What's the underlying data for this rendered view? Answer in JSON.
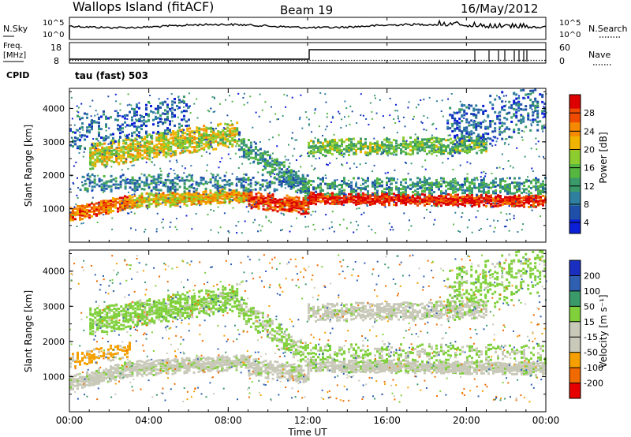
{
  "header": {
    "station": "Wallops Island (fitACF)",
    "beam": "Beam 19",
    "date": "16/May/2012"
  },
  "top_panel": {
    "left_label": "N.Sky",
    "left_ticks": [
      "10^5",
      "10^0"
    ],
    "right_label": "N.Search",
    "right_ticks": [
      "10^5",
      "10^0"
    ]
  },
  "freq_panel": {
    "left_label_1": "Freq.",
    "left_label_2": "[MHz]",
    "left_ticks": [
      "18",
      "8"
    ],
    "right_label": "Nave",
    "right_ticks": [
      "60",
      "0"
    ],
    "cpid_label": "CPID",
    "cpid_value": "tau (fast) 503"
  },
  "colors": {
    "power": [
      "#0b1fd6",
      "#1f4fa8",
      "#2f7fa0",
      "#3a9a6a",
      "#55b640",
      "#8ccc2e",
      "#f0b400",
      "#f58a00",
      "#ee4a00",
      "#dd0000"
    ],
    "velocity": [
      "#e60000",
      "#f06a00",
      "#f5a000",
      "#c9c9b9",
      "#c9c9b9",
      "#7fd03a",
      "#3a9a6a",
      "#2f5fb0",
      "#1a2fc0"
    ]
  },
  "chart_data": [
    {
      "type": "heatmap",
      "name": "power",
      "xlabel": "",
      "ylabel": "Slant Range [km]",
      "xlim": [
        0,
        24
      ],
      "ylim": [
        0,
        4600
      ],
      "yticks": [
        1000,
        2000,
        3000,
        4000
      ],
      "colorbar": {
        "label": "Power [dB]",
        "ticks": [
          "28",
          "24",
          "20",
          "16",
          "12",
          "8",
          "4"
        ],
        "range": [
          0,
          30
        ]
      },
      "bands": [
        {
          "from_h": 0,
          "to_h": 3,
          "range_start": 850,
          "range_end": 1250,
          "width": 180,
          "level": 24,
          "density": 0.95
        },
        {
          "from_h": 3,
          "to_h": 9,
          "range_start": 1250,
          "range_end": 1450,
          "width": 200,
          "level": 20,
          "density": 0.95
        },
        {
          "from_h": 9,
          "to_h": 12,
          "range_start": 1300,
          "range_end": 1100,
          "width": 220,
          "level": 26,
          "density": 0.9
        },
        {
          "from_h": 12,
          "to_h": 24,
          "range_start": 1350,
          "range_end": 1250,
          "width": 160,
          "level": 28,
          "density": 0.95
        },
        {
          "from_h": 1,
          "to_h": 8.5,
          "range_start": 2600,
          "range_end": 3300,
          "width": 350,
          "level": 18,
          "density": 0.75
        },
        {
          "from_h": 8.5,
          "to_h": 12,
          "range_start": 3000,
          "range_end": 1600,
          "width": 300,
          "level": 10,
          "density": 0.55
        },
        {
          "from_h": 12,
          "to_h": 21,
          "range_start": 2850,
          "range_end": 2950,
          "width": 250,
          "level": 14,
          "density": 0.7
        },
        {
          "from_h": 0.5,
          "to_h": 12,
          "range_start": 1800,
          "range_end": 1800,
          "width": 250,
          "level": 8,
          "density": 0.35
        },
        {
          "from_h": 12,
          "to_h": 24,
          "range_start": 1700,
          "range_end": 1700,
          "width": 250,
          "level": 10,
          "density": 0.5
        },
        {
          "from_h": 0,
          "to_h": 6,
          "range_start": 3300,
          "range_end": 3900,
          "width": 500,
          "level": 6,
          "density": 0.25
        },
        {
          "from_h": 19,
          "to_h": 24,
          "range_start": 3300,
          "range_end": 4200,
          "width": 700,
          "level": 6,
          "density": 0.3
        }
      ]
    },
    {
      "type": "heatmap",
      "name": "velocity",
      "xlabel": "Time UT",
      "ylabel": "Slant Range [km]",
      "xlim": [
        0,
        24
      ],
      "ylim": [
        0,
        4600
      ],
      "xticks": [
        "00:00",
        "04:00",
        "08:00",
        "12:00",
        "16:00",
        "20:00",
        "00:00"
      ],
      "yticks": [
        1000,
        2000,
        3000,
        4000
      ],
      "colorbar": {
        "label": "Velocity [m s⁻¹]",
        "ticks": [
          "200",
          "100",
          "50",
          "15",
          "-15",
          "-50",
          "-100",
          "-200"
        ],
        "range": [
          -250,
          250
        ]
      },
      "bands": [
        {
          "from_h": 0,
          "to_h": 3,
          "range_start": 850,
          "range_end": 1250,
          "width": 180,
          "level": 0,
          "density": 0.9
        },
        {
          "from_h": 3,
          "to_h": 9,
          "range_start": 1250,
          "range_end": 1450,
          "width": 200,
          "level": 0,
          "density": 0.9
        },
        {
          "from_h": 9,
          "to_h": 12,
          "range_start": 1300,
          "range_end": 1100,
          "width": 220,
          "level": 0,
          "density": 0.8
        },
        {
          "from_h": 12,
          "to_h": 24,
          "range_start": 1350,
          "range_end": 1250,
          "width": 160,
          "level": 0,
          "density": 0.95
        },
        {
          "from_h": 1,
          "to_h": 8.5,
          "range_start": 2600,
          "range_end": 3300,
          "width": 350,
          "level": 30,
          "density": 0.7
        },
        {
          "from_h": 8.5,
          "to_h": 12,
          "range_start": 3000,
          "range_end": 1600,
          "width": 300,
          "level": 20,
          "density": 0.5
        },
        {
          "from_h": 12,
          "to_h": 21,
          "range_start": 2850,
          "range_end": 2950,
          "width": 250,
          "level": 0,
          "density": 0.7
        },
        {
          "from_h": 0,
          "to_h": 3,
          "range_start": 1500,
          "range_end": 1800,
          "width": 200,
          "level": -60,
          "density": 0.4
        },
        {
          "from_h": 12,
          "to_h": 24,
          "range_start": 1700,
          "range_end": 1700,
          "width": 250,
          "level": 20,
          "density": 0.35
        },
        {
          "from_h": 19,
          "to_h": 24,
          "range_start": 3300,
          "range_end": 4200,
          "width": 700,
          "level": 30,
          "density": 0.25
        }
      ]
    }
  ]
}
